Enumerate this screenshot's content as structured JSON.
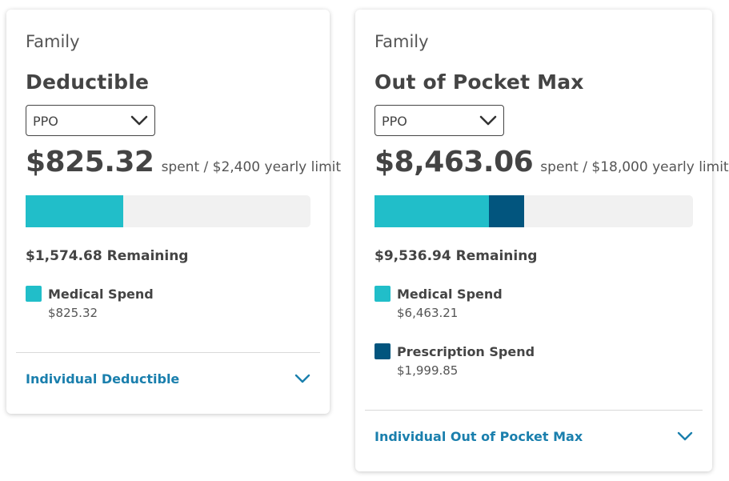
{
  "colors": {
    "medical": "#21bec9",
    "prescription": "#02557e",
    "track": "#f1f1f1",
    "link": "#1a7fad"
  },
  "deductible": {
    "eyebrow": "Family",
    "title": "Deductible",
    "plan_select": "PPO",
    "spent_amount": "$825.32",
    "limit_text": "spent / $2,400 yearly limit",
    "progress": {
      "limit": 2400,
      "medical": 825.32
    },
    "remaining": "$1,574.68 Remaining",
    "legend": [
      {
        "label": "Medical Spend",
        "amount": "$825.32"
      }
    ],
    "footer_link": "Individual Deductible"
  },
  "out_of_pocket": {
    "eyebrow": "Family",
    "title": "Out of Pocket Max",
    "plan_select": "PPO",
    "spent_amount": "$8,463.06",
    "limit_text": "spent / $18,000 yearly limit",
    "progress": {
      "limit": 18000,
      "medical": 6463.21,
      "prescription": 1999.85
    },
    "remaining": "$9,536.94 Remaining",
    "legend": [
      {
        "label": "Medical Spend",
        "amount": "$6,463.21"
      },
      {
        "label": "Prescription Spend",
        "amount": "$1,999.85"
      }
    ],
    "footer_link": "Individual Out of Pocket Max"
  }
}
